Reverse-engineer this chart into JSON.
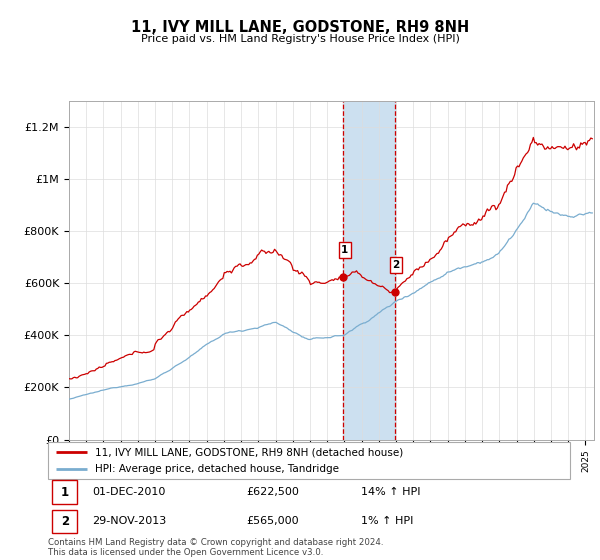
{
  "title": "11, IVY MILL LANE, GODSTONE, RH9 8NH",
  "subtitle": "Price paid vs. HM Land Registry's House Price Index (HPI)",
  "ylabel_ticks": [
    0,
    200000,
    400000,
    600000,
    800000,
    1000000,
    1200000
  ],
  "ylabel_labels": [
    "£0",
    "£200K",
    "£400K",
    "£600K",
    "£800K",
    "£1M",
    "£1.2M"
  ],
  "ylim": [
    0,
    1300000
  ],
  "xlim_start": 1995.0,
  "xlim_end": 2025.5,
  "transaction1_date": 2010.92,
  "transaction1_price": 622500,
  "transaction2_date": 2013.91,
  "transaction2_price": 565000,
  "transactions": [
    {
      "label": "1",
      "date": 2010.92,
      "price": 622500,
      "pct": "14%",
      "direction": "↑",
      "date_str": "01-DEC-2010",
      "price_str": "£622,500"
    },
    {
      "label": "2",
      "date": 2013.91,
      "price": 565000,
      "pct": "1%",
      "direction": "↑",
      "date_str": "29-NOV-2013",
      "price_str": "£565,000"
    }
  ],
  "legend_entry1": "11, IVY MILL LANE, GODSTONE, RH9 8NH (detached house)",
  "legend_entry2": "HPI: Average price, detached house, Tandridge",
  "footer": "Contains HM Land Registry data © Crown copyright and database right 2024.\nThis data is licensed under the Open Government Licence v3.0.",
  "line_color_red": "#cc0000",
  "line_color_blue": "#7aadcf",
  "shade_color": "#cce0f0",
  "marker_color_red": "#cc0000"
}
